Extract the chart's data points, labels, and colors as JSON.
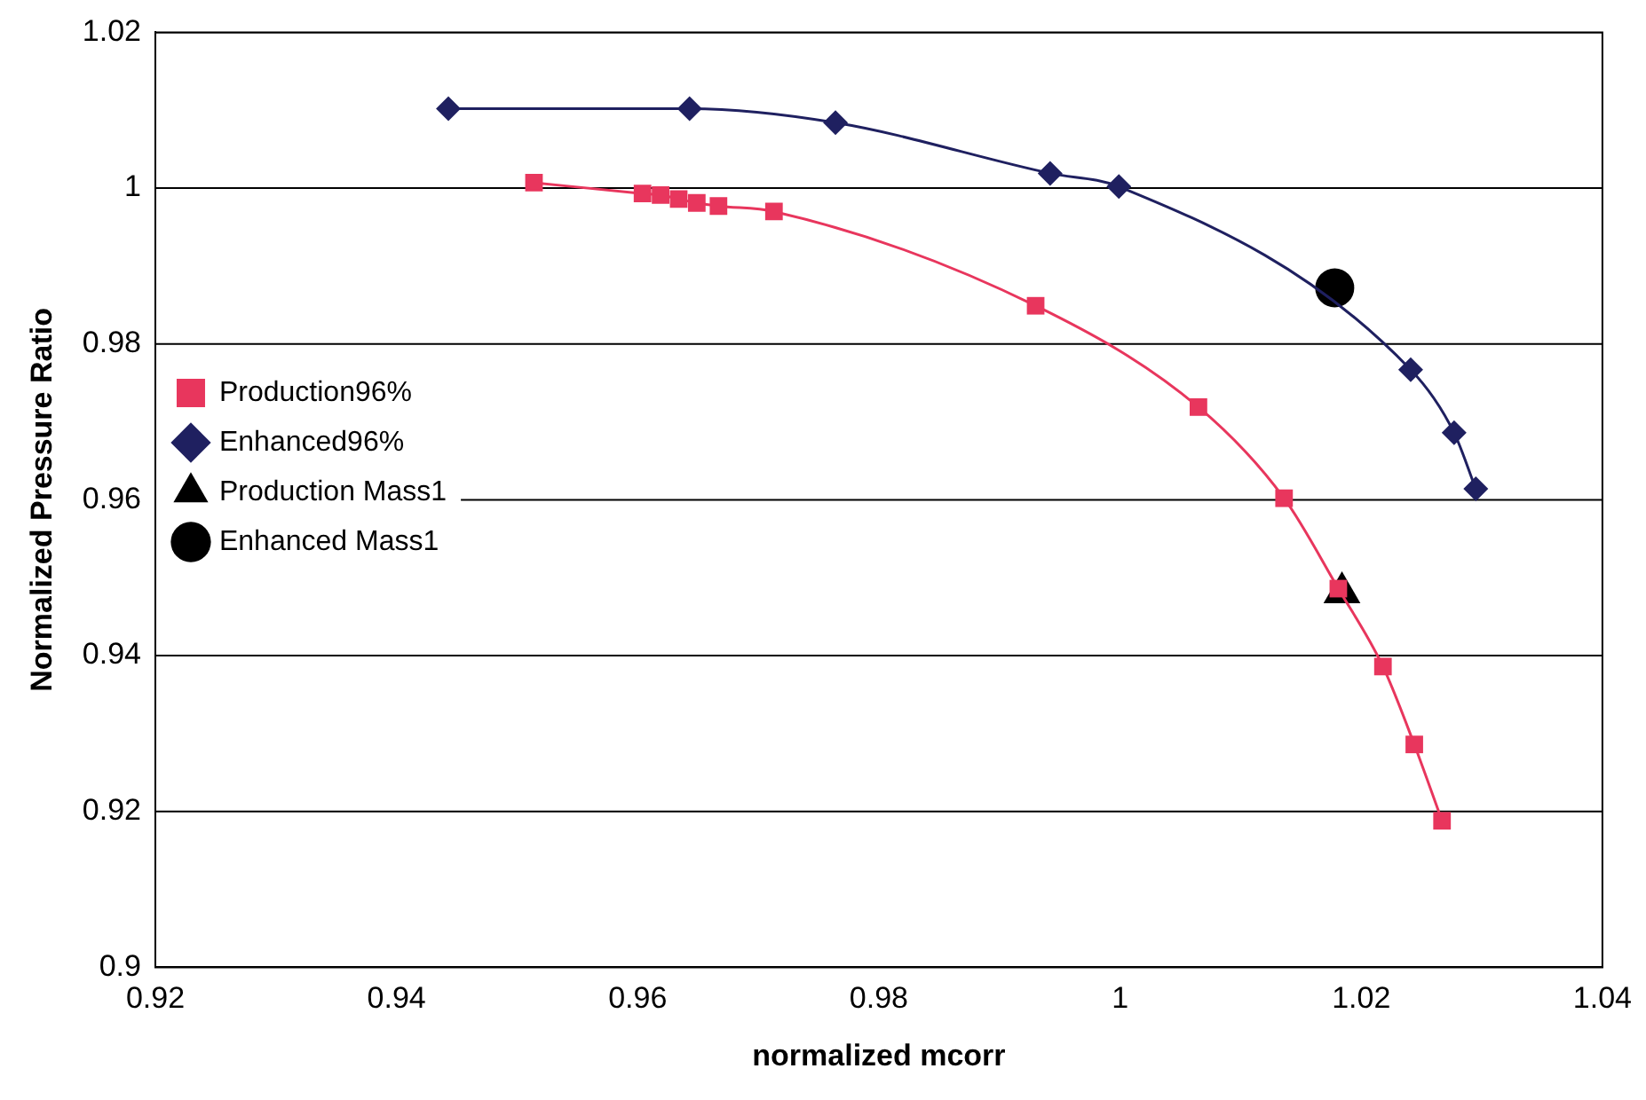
{
  "chart_data": {
    "type": "line",
    "xlabel": "normalized mcorr",
    "ylabel": "Normalized Pressure Ratio",
    "xlim": [
      0.92,
      1.04
    ],
    "xticks": [
      0.92,
      0.94,
      0.96,
      0.98,
      1,
      1.02,
      1.04
    ],
    "ylim": [
      0.9,
      1.02
    ],
    "yticks": [
      0.9,
      0.92,
      0.94,
      0.96,
      0.98,
      1,
      1.02
    ],
    "grid": "y",
    "legend": "left",
    "series": [
      {
        "name": "Production96%",
        "type": "line",
        "marker": "square",
        "color": "#e8365d",
        "x": [
          0.9514,
          0.9604,
          0.9619,
          0.9634,
          0.9649,
          0.9667,
          0.9713,
          0.993,
          1.0065,
          1.0136,
          1.0181,
          1.0218,
          1.0244,
          1.0267
        ],
        "values": [
          1.0007,
          0.9993,
          0.9991,
          0.9986,
          0.9981,
          0.9977,
          0.997,
          0.9849,
          0.9719,
          0.9602,
          0.9486,
          0.9386,
          0.9286,
          0.9188
        ]
      },
      {
        "name": "Enhanced96%",
        "type": "line",
        "marker": "diamond",
        "color": "#1f2060",
        "x": [
          0.9443,
          0.9643,
          0.9764,
          0.9942,
          0.9999,
          1.0241,
          1.0277,
          1.0295
        ],
        "values": [
          1.0102,
          1.0102,
          1.0084,
          1.0019,
          1.0002,
          0.9767,
          0.9686,
          0.9614
        ]
      },
      {
        "name": "Production Mass1",
        "type": "scatter",
        "marker": "triangle",
        "color": "#000000",
        "x": [
          1.0184
        ],
        "values": [
          0.9481
        ]
      },
      {
        "name": "Enhanced Mass1",
        "type": "scatter",
        "marker": "circle",
        "color": "#000000",
        "x": [
          1.0178
        ],
        "values": [
          0.9872
        ]
      }
    ]
  }
}
